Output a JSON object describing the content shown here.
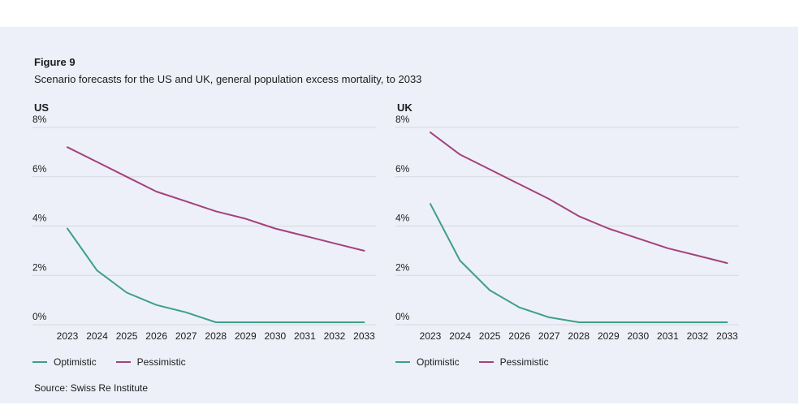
{
  "panel": {
    "figure_label": "Figure 9",
    "subtitle": "Scenario forecasts for the US and UK, general population excess mortality, to 2033",
    "source": "Source: Swiss Re Institute"
  },
  "colors": {
    "panel_bg": "#edf0f8",
    "grid": "#d5d8dd",
    "text": "#1c1c1c",
    "optimistic": "#3f9e8a",
    "pessimistic": "#a5417d"
  },
  "chart_data": [
    {
      "type": "line",
      "title": "US",
      "x": [
        2023,
        2024,
        2025,
        2026,
        2027,
        2028,
        2029,
        2030,
        2031,
        2032,
        2033
      ],
      "series": [
        {
          "name": "Optimistic",
          "color": "#3f9e8a",
          "values": [
            3.9,
            2.2,
            1.3,
            0.8,
            0.5,
            0.1,
            0.1,
            0.1,
            0.1,
            0.1,
            0.1
          ]
        },
        {
          "name": "Pessimistic",
          "color": "#a5417d",
          "values": [
            7.2,
            6.6,
            6.0,
            5.4,
            5.0,
            4.6,
            4.3,
            3.9,
            3.6,
            3.3,
            3.0
          ]
        }
      ],
      "ylim": [
        0,
        8
      ],
      "yticks": [
        0,
        2,
        4,
        6,
        8
      ],
      "ytick_labels": [
        "0%",
        "2%",
        "4%",
        "6%",
        "8%"
      ],
      "grid": true,
      "legend_position": "bottom"
    },
    {
      "type": "line",
      "title": "UK",
      "x": [
        2023,
        2024,
        2025,
        2026,
        2027,
        2028,
        2029,
        2030,
        2031,
        2032,
        2033
      ],
      "series": [
        {
          "name": "Optimistic",
          "color": "#3f9e8a",
          "values": [
            4.9,
            2.6,
            1.4,
            0.7,
            0.3,
            0.1,
            0.1,
            0.1,
            0.1,
            0.1,
            0.1
          ]
        },
        {
          "name": "Pessimistic",
          "color": "#a5417d",
          "values": [
            7.8,
            6.9,
            6.3,
            5.7,
            5.1,
            4.4,
            3.9,
            3.5,
            3.1,
            2.8,
            2.5
          ]
        }
      ],
      "ylim": [
        0,
        8
      ],
      "yticks": [
        0,
        2,
        4,
        6,
        8
      ],
      "ytick_labels": [
        "0%",
        "2%",
        "4%",
        "6%",
        "8%"
      ],
      "grid": true,
      "legend_position": "bottom"
    }
  ]
}
